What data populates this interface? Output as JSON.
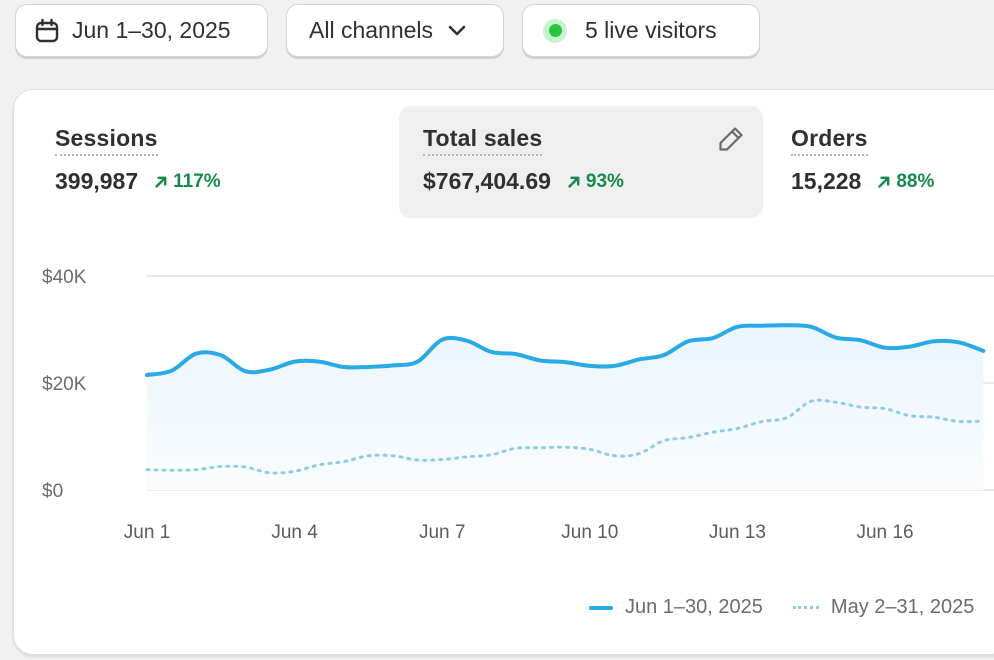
{
  "filters": {
    "date_range": "Jun 1–30, 2025",
    "channel": "All channels",
    "live_visitors": "5 live visitors"
  },
  "metrics": [
    {
      "label": "Sessions",
      "value": "399,987",
      "change": "117%",
      "selected": false
    },
    {
      "label": "Total sales",
      "value": "$767,404.69",
      "change": "93%",
      "selected": true
    },
    {
      "label": "Orders",
      "value": "15,228",
      "change": "88%",
      "selected": false
    }
  ],
  "colors": {
    "current_series": "#29a9e6",
    "previous_series": "#8ecde6",
    "positive_change": "#168a4a",
    "live_dot": "#29c540"
  },
  "chart_data": {
    "type": "line",
    "yticks": [
      "$0",
      "$20K",
      "$40K"
    ],
    "ylim": [
      0,
      40000
    ],
    "x_tick_labels": [
      "Jun 1",
      "Jun 4",
      "Jun 7",
      "Jun 10",
      "Jun 13",
      "Jun 16"
    ],
    "x_tick_days": [
      1,
      4,
      7,
      10,
      13,
      16
    ],
    "x_range": [
      1,
      18
    ],
    "series": [
      {
        "name": "Jun 1–30, 2025",
        "style": "solid",
        "days": [
          1,
          1.5,
          2,
          2.5,
          3,
          3.5,
          4,
          4.5,
          5,
          5.5,
          6,
          6.5,
          7,
          7.5,
          8,
          8.5,
          9,
          9.5,
          10,
          10.5,
          11,
          11.5,
          12,
          12.5,
          13,
          13.5,
          14,
          14.5,
          15,
          15.5,
          16,
          16.5,
          17,
          17.5,
          18
        ],
        "values": [
          21500,
          22300,
          25500,
          25200,
          22200,
          22500,
          24000,
          24000,
          23000,
          23000,
          23300,
          24000,
          28100,
          27900,
          25800,
          25400,
          24200,
          23900,
          23200,
          23200,
          24400,
          25200,
          27800,
          28400,
          30500,
          30700,
          30800,
          30500,
          28500,
          28000,
          26600,
          26800,
          27800,
          27600,
          26000
        ]
      },
      {
        "name": "May 2–31, 2025",
        "style": "dotted",
        "days": [
          1,
          1.5,
          2,
          2.5,
          3,
          3.5,
          4,
          4.5,
          5,
          5.5,
          6,
          6.5,
          7,
          7.5,
          8,
          8.5,
          9,
          9.5,
          10,
          10.5,
          11,
          11.5,
          12,
          12.5,
          13,
          13.5,
          14,
          14.5,
          15,
          15.5,
          16,
          16.5,
          17,
          17.5,
          18
        ],
        "values": [
          3800,
          3700,
          3800,
          4400,
          4300,
          3200,
          3500,
          4700,
          5300,
          6400,
          6400,
          5600,
          5700,
          6200,
          6600,
          7800,
          7900,
          8000,
          7600,
          6400,
          6800,
          9200,
          9800,
          10800,
          11500,
          12800,
          13500,
          16600,
          16400,
          15500,
          15200,
          13900,
          13600,
          12800,
          12900
        ]
      }
    ]
  }
}
